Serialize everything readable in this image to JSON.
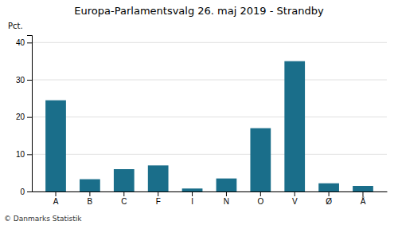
{
  "chart_data": {
    "type": "bar",
    "title": "Europa-Parlamentsvalg 26. maj 2019 - Strandby",
    "ylabel": "Pct.",
    "categories": [
      "A",
      "B",
      "C",
      "F",
      "I",
      "N",
      "O",
      "V",
      "Ø",
      "Å"
    ],
    "values": [
      24.5,
      3.3,
      6.0,
      7.0,
      0.8,
      3.5,
      17.0,
      35.0,
      2.2,
      1.5
    ],
    "color": "#1a6e8a",
    "ylim": [
      0,
      42
    ],
    "yticks": [
      0,
      10,
      20,
      30,
      40
    ],
    "grid": true,
    "annotations": [
      "© Danmarks Statistik"
    ]
  }
}
